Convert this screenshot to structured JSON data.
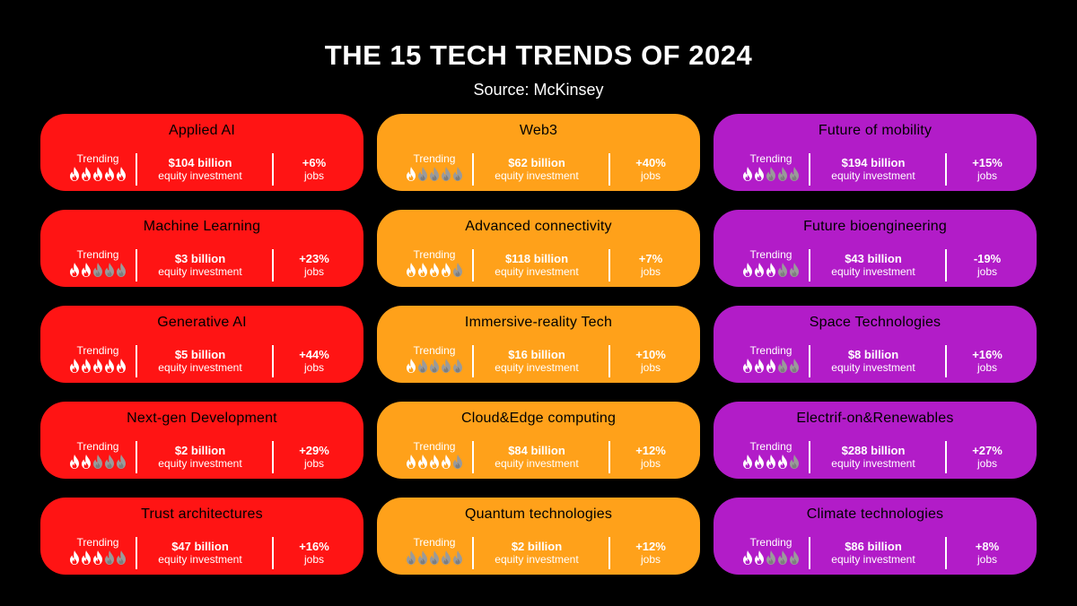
{
  "title": "THE 15 TECH TRENDS OF 2024",
  "subtitle": "Source:  McKinsey",
  "labels": {
    "trending": "Trending",
    "equity": "equity investment",
    "jobs": "jobs"
  },
  "colors": {
    "red": "#ff1414",
    "orange": "#ffa11a",
    "purple": "#b21cc8",
    "flame_on": "#ffffff",
    "flame_off": "#9a9a9a"
  },
  "cards": [
    {
      "name": "Applied AI",
      "color": "red",
      "trending": 5,
      "investment": "$104 billion",
      "jobs": "+6%"
    },
    {
      "name": "Web3",
      "color": "orange",
      "trending": 1,
      "investment": "$62 billion",
      "jobs": "+40%"
    },
    {
      "name": "Future of mobility",
      "color": "purple",
      "trending": 2,
      "investment": "$194 billion",
      "jobs": "+15%"
    },
    {
      "name": "Machine Learning",
      "color": "red",
      "trending": 2,
      "investment": "$3 billion",
      "jobs": "+23%"
    },
    {
      "name": "Advanced connectivity",
      "color": "orange",
      "trending": 4,
      "investment": "$118 billion",
      "jobs": "+7%"
    },
    {
      "name": "Future bioengineering",
      "color": "purple",
      "trending": 3,
      "investment": "$43 billion",
      "jobs": "-19%"
    },
    {
      "name": "Generative AI",
      "color": "red",
      "trending": 5,
      "investment": "$5 billion",
      "jobs": "+44%"
    },
    {
      "name": "Immersive-reality Tech",
      "color": "orange",
      "trending": 1,
      "investment": "$16 billion",
      "jobs": "+10%"
    },
    {
      "name": "Space Technologies",
      "color": "purple",
      "trending": 3,
      "investment": "$8 billion",
      "jobs": "+16%"
    },
    {
      "name": "Next-gen Development",
      "color": "red",
      "trending": 2,
      "investment": "$2 billion",
      "jobs": "+29%"
    },
    {
      "name": "Cloud&Edge computing",
      "color": "orange",
      "trending": 4,
      "investment": "$84 billion",
      "jobs": "+12%"
    },
    {
      "name": "Electrif-on&Renewables",
      "color": "purple",
      "trending": 4,
      "investment": "$288 billion",
      "jobs": "+27%"
    },
    {
      "name": "Trust architectures",
      "color": "red",
      "trending": 3,
      "investment": "$47 billion",
      "jobs": "+16%"
    },
    {
      "name": "Quantum technologies",
      "color": "orange",
      "trending": 0,
      "investment": "$2 billion",
      "jobs": "+12%"
    },
    {
      "name": "Climate technologies",
      "color": "purple",
      "trending": 2,
      "investment": "$86 billion",
      "jobs": "+8%"
    }
  ]
}
